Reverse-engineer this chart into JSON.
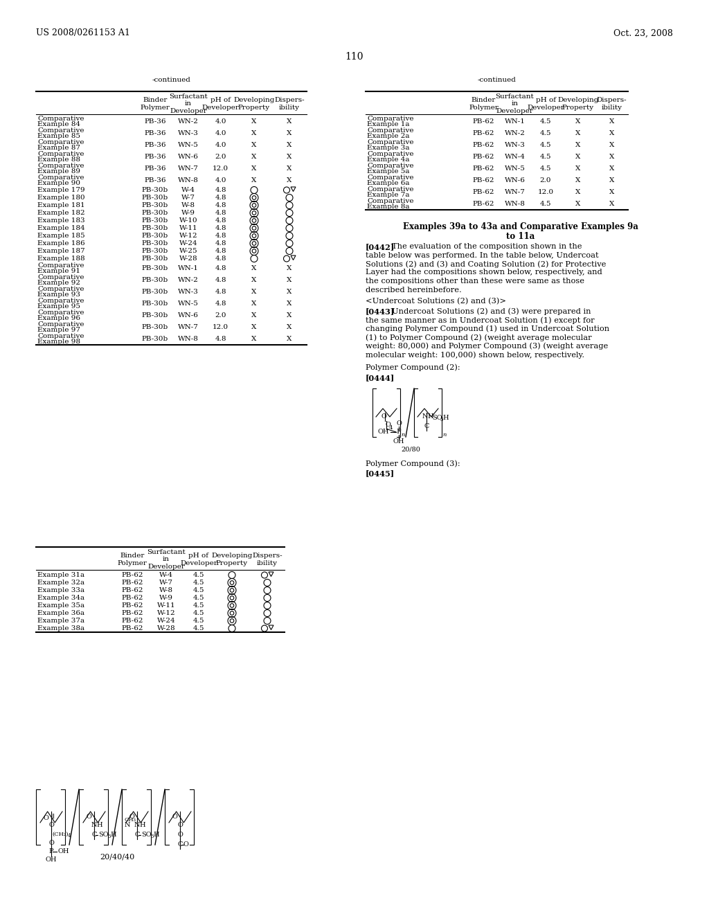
{
  "header_left": "US 2008/0261153 A1",
  "header_right": "Oct. 23, 2008",
  "page_number": "110",
  "bg_color": "#ffffff",
  "table1_title": "-continued",
  "table1_rows": [
    [
      "Comparative\nExample 84",
      "PB-36",
      "WN-2",
      "4.0",
      "X",
      "X"
    ],
    [
      "Comparative\nExample 85",
      "PB-36",
      "WN-3",
      "4.0",
      "X",
      "X"
    ],
    [
      "Comparative\nExample 87",
      "PB-36",
      "WN-5",
      "4.0",
      "X",
      "X"
    ],
    [
      "Comparative\nExample 88",
      "PB-36",
      "WN-6",
      "2.0",
      "X",
      "X"
    ],
    [
      "Comparative\nExample 89",
      "PB-36",
      "WN-7",
      "12.0",
      "X",
      "X"
    ],
    [
      "Comparative\nExample 90",
      "PB-36",
      "WN-8",
      "4.0",
      "X",
      "X"
    ],
    [
      "Example 179",
      "PB-30b",
      "W-4",
      "4.8",
      "circle",
      "circle_tri"
    ],
    [
      "Example 180",
      "PB-30b",
      "W-7",
      "4.8",
      "double_circle",
      "circle"
    ],
    [
      "Example 181",
      "PB-30b",
      "W-8",
      "4.8",
      "double_circle",
      "circle"
    ],
    [
      "Example 182",
      "PB-30b",
      "W-9",
      "4.8",
      "double_circle",
      "circle"
    ],
    [
      "Example 183",
      "PB-30b",
      "W-10",
      "4.8",
      "double_circle",
      "circle"
    ],
    [
      "Example 184",
      "PB-30b",
      "W-11",
      "4.8",
      "double_circle",
      "circle"
    ],
    [
      "Example 185",
      "PB-30b",
      "W-12",
      "4.8",
      "double_circle",
      "circle"
    ],
    [
      "Example 186",
      "PB-30b",
      "W-24",
      "4.8",
      "double_circle",
      "circle"
    ],
    [
      "Example 187",
      "PB-30b",
      "W-25",
      "4.8",
      "double_circle",
      "circle"
    ],
    [
      "Example 188",
      "PB-30b",
      "W-28",
      "4.8",
      "circle",
      "circle_tri"
    ],
    [
      "Comparative\nExample 91",
      "PB-30b",
      "WN-1",
      "4.8",
      "X",
      "X"
    ],
    [
      "Comparative\nExample 92",
      "PB-30b",
      "WN-2",
      "4.8",
      "X",
      "X"
    ],
    [
      "Comparative\nExample 93",
      "PB-30b",
      "WN-3",
      "4.8",
      "X",
      "X"
    ],
    [
      "Comparative\nExample 95",
      "PB-30b",
      "WN-5",
      "4.8",
      "X",
      "X"
    ],
    [
      "Comparative\nExample 96",
      "PB-30b",
      "WN-6",
      "2.0",
      "X",
      "X"
    ],
    [
      "Comparative\nExample 97",
      "PB-30b",
      "WN-7",
      "12.0",
      "X",
      "X"
    ],
    [
      "Comparative\nExample 98",
      "PB-30b",
      "WN-8",
      "4.8",
      "X",
      "X"
    ]
  ],
  "table2_title": "-continued",
  "table2_rows": [
    [
      "Comparative\nExample 1a",
      "PB-62",
      "WN-1",
      "4.5",
      "X",
      "X"
    ],
    [
      "Comparative\nExample 2a",
      "PB-62",
      "WN-2",
      "4.5",
      "X",
      "X"
    ],
    [
      "Comparative\nExample 3a",
      "PB-62",
      "WN-3",
      "4.5",
      "X",
      "X"
    ],
    [
      "Comparative\nExample 4a",
      "PB-62",
      "WN-4",
      "4.5",
      "X",
      "X"
    ],
    [
      "Comparative\nExample 5a",
      "PB-62",
      "WN-5",
      "4.5",
      "X",
      "X"
    ],
    [
      "Comparative\nExample 6a",
      "PB-62",
      "WN-6",
      "2.0",
      "X",
      "X"
    ],
    [
      "Comparative\nExample 7a",
      "PB-62",
      "WN-7",
      "12.0",
      "X",
      "X"
    ],
    [
      "Comparative\nExample 8a",
      "PB-62",
      "WN-8",
      "4.5",
      "X",
      "X"
    ]
  ],
  "table3_rows": [
    [
      "Example 31a",
      "PB-62",
      "W-4",
      "4.5",
      "circle",
      "circle_tri"
    ],
    [
      "Example 32a",
      "PB-62",
      "W-7",
      "4.5",
      "double_circle",
      "circle"
    ],
    [
      "Example 33a",
      "PB-62",
      "W-8",
      "4.5",
      "double_circle",
      "circle"
    ],
    [
      "Example 34a",
      "PB-62",
      "W-9",
      "4.5",
      "double_circle",
      "circle"
    ],
    [
      "Example 35a",
      "PB-62",
      "W-11",
      "4.5",
      "double_circle",
      "circle"
    ],
    [
      "Example 36a",
      "PB-62",
      "W-12",
      "4.5",
      "double_circle",
      "circle"
    ],
    [
      "Example 37a",
      "PB-62",
      "W-24",
      "4.5",
      "double_circle",
      "circle"
    ],
    [
      "Example 38a",
      "PB-62",
      "W-28",
      "4.5",
      "circle",
      "circle_tri"
    ]
  ],
  "section_heading_line1": "Examples 39a to 43a and Comparative Examples 9a",
  "section_heading_line2": "to 11a",
  "para_0442_lines": [
    "[0442]    The evaluation of the composition shown in the",
    "table below was performed. In the table below, Undercoat",
    "Solutions (2) and (3) and Coating Solution (2) for Protective",
    "Layer had the compositions shown below, respectively, and",
    "the compositions other than these were same as those",
    "described hereinbefore."
  ],
  "subheading_undercoat": "<Undercoat Solutions (2) and (3)>",
  "para_0443_lines": [
    "[0443]    Undercoat Solutions (2) and (3) were prepared in",
    "the same manner as in Undercoat Solution (1) except for",
    "changing Polymer Compound (1) used in Undercoat Solution",
    "(1) to Polymer Compound (2) (weight average molecular",
    "weight: 80,000) and Polymer Compound (3) (weight average",
    "molecular weight: 100,000) shown below, respectively."
  ],
  "polymer_compound_2_label": "Polymer Compound (2):",
  "para_0444_tag": "[0444]",
  "polymer_compound_3_label": "Polymer Compound (3):",
  "para_0445_tag": "[0445]",
  "ratio_2": "20/80",
  "ratio_3": "20/40/40",
  "hdr_col_labels": [
    "Binder\nPolymer",
    "Surfactant\nin\nDeveloper",
    "pH of\nDeveloper",
    "Developing\nProperty",
    "Dispers-\nibility"
  ]
}
